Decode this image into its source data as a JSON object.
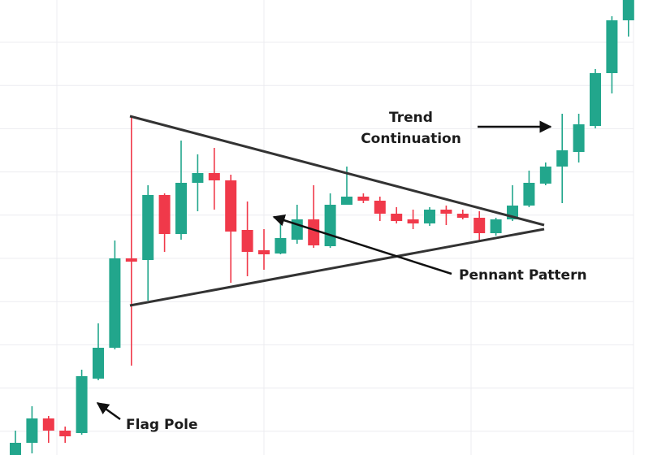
{
  "chart_data": {
    "type": "candlestick",
    "grid": true,
    "up_color": "#22a68c",
    "down_color": "#f0394a",
    "ylim": [
      0,
      560
    ],
    "open": [
      0,
      15,
      45,
      30,
      27,
      94,
      132,
      242,
      240,
      320,
      272,
      335,
      347,
      338,
      277,
      252,
      248,
      265,
      290,
      257,
      308,
      318,
      313,
      297,
      290,
      285,
      302,
      297,
      292,
      273,
      290,
      307,
      334,
      355,
      373,
      405,
      470,
      535
    ],
    "high": [
      30,
      60,
      48,
      35,
      105,
      162,
      264,
      417,
      332,
      322,
      387,
      370,
      378,
      345,
      312,
      278,
      285,
      308,
      332,
      322,
      355,
      322,
      318,
      305,
      302,
      305,
      307,
      302,
      300,
      292,
      332,
      350,
      360,
      420,
      420,
      475,
      540,
      560
    ],
    "low": [
      0,
      2,
      15,
      15,
      25,
      92,
      130,
      110,
      190,
      250,
      265,
      300,
      302,
      212,
      220,
      228,
      247,
      260,
      255,
      255,
      308,
      310,
      288,
      285,
      278,
      282,
      283,
      290,
      262,
      270,
      288,
      305,
      332,
      310,
      360,
      402,
      445,
      515
    ],
    "close": [
      15,
      45,
      30,
      23,
      97,
      132,
      242,
      238,
      320,
      272,
      335,
      347,
      338,
      275,
      250,
      247,
      267,
      290,
      258,
      308,
      318,
      313,
      297,
      288,
      285,
      302,
      297,
      292,
      273,
      290,
      307,
      335,
      355,
      375,
      407,
      470,
      535,
      560
    ],
    "annotations": [
      {
        "lines": [
          "Trend",
          "Continuation"
        ]
      },
      {
        "lines": [
          "Pennant Pattern"
        ]
      },
      {
        "lines": [
          "Flag Pole"
        ]
      }
    ]
  }
}
